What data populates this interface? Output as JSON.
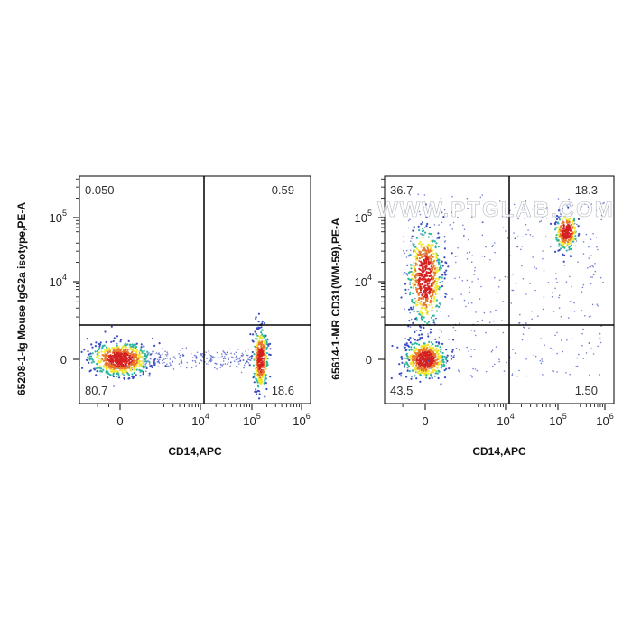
{
  "chart_data": [
    {
      "type": "scatter",
      "subtype": "flow-cytometry-density-plot",
      "xlabel": "CD14,APC",
      "ylabel": "65208-1-Ig Mouse IgG2a isotype,PE-A",
      "x_scale": "biexponential",
      "y_scale": "biexponential",
      "x_ticks": [
        {
          "base": "0",
          "exp": ""
        },
        {
          "base": "10",
          "exp": "4"
        },
        {
          "base": "10",
          "exp": "5"
        },
        {
          "base": "10",
          "exp": "6"
        }
      ],
      "y_ticks": [
        {
          "base": "0",
          "exp": ""
        },
        {
          "base": "10",
          "exp": "4"
        },
        {
          "base": "10",
          "exp": "5"
        }
      ],
      "quadrants": {
        "upper_left": "0.050",
        "upper_right": "0.59",
        "lower_left": "80.7",
        "lower_right": "18.6"
      },
      "populations": [
        {
          "name": "",
          "x_center": 0,
          "y_center": 0,
          "events": "80.7"
        },
        {
          "name": "",
          "x_center": 150000,
          "y_center": 0,
          "events": "18.6"
        }
      ]
    },
    {
      "type": "scatter",
      "subtype": "flow-cytometry-density-plot",
      "xlabel": "CD14,APC",
      "ylabel": "65614-1-MR CD31(WM-59),PE-A",
      "x_scale": "biexponential",
      "y_scale": "biexponential",
      "x_ticks": [
        {
          "base": "0",
          "exp": ""
        },
        {
          "base": "10",
          "exp": "4"
        },
        {
          "base": "10",
          "exp": "5"
        },
        {
          "base": "10",
          "exp": "6"
        }
      ],
      "y_ticks": [
        {
          "base": "0",
          "exp": ""
        },
        {
          "base": "10",
          "exp": "4"
        },
        {
          "base": "10",
          "exp": "5"
        }
      ],
      "quadrants": {
        "upper_left": "36.7",
        "upper_right": "18.3",
        "lower_left": "43.5",
        "lower_right": "1.50"
      },
      "populations": [
        {
          "name": "",
          "x_center": 0,
          "y_center": 0,
          "events": "43.5"
        },
        {
          "name": "",
          "x_center": 0,
          "y_center": 12000,
          "events": "36.7"
        },
        {
          "name": "",
          "x_center": 150000,
          "y_center": 60000,
          "events": "18.3"
        }
      ]
    }
  ],
  "watermark": "WWW.PTGLAB.COM",
  "colors": {
    "density_low": "#3b4cc0",
    "density_mid": "#2ab6a0",
    "density_high_1": "#f2e52e",
    "density_high_2": "#e8762b",
    "density_peak": "#d62020",
    "gate_line": "#000000"
  }
}
